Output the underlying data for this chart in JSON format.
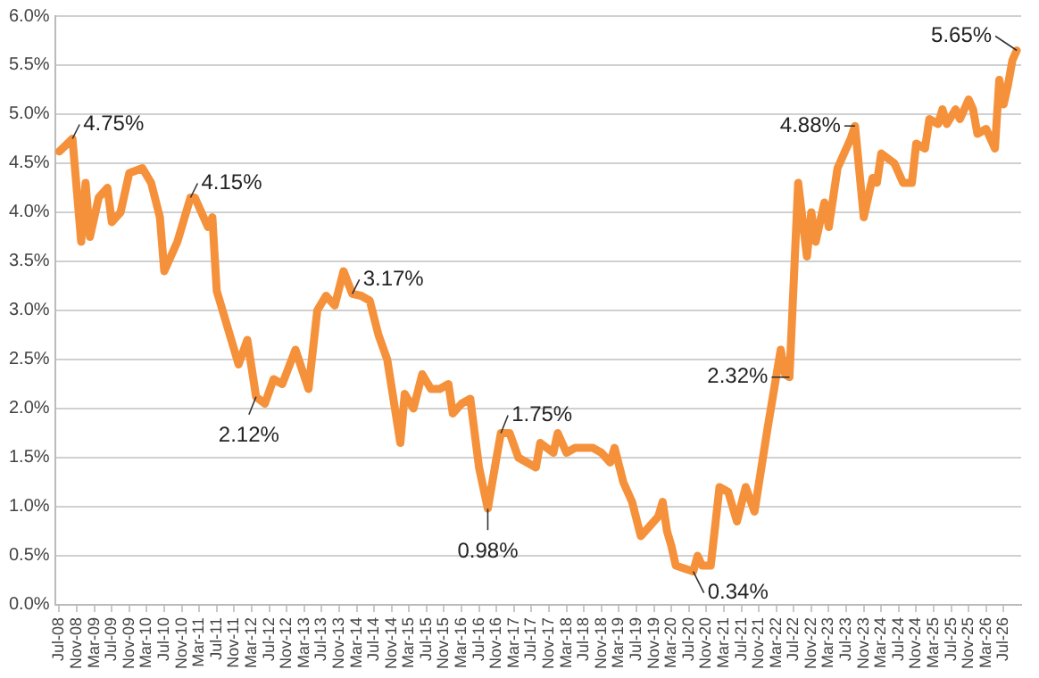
{
  "chart_data": {
    "type": "line",
    "grid": "y",
    "legend": false,
    "marker": "none",
    "line_style": "solid",
    "xlim": [
      "2008-06",
      "2026-11"
    ],
    "xticks": [
      {
        "value": "2008-07",
        "label": "Jul-08"
      },
      {
        "value": "2008-11",
        "label": "Nov-08"
      },
      {
        "value": "2009-03",
        "label": "Mar-09"
      },
      {
        "value": "2009-07",
        "label": "Jul-09"
      },
      {
        "value": "2009-11",
        "label": "Nov-09"
      },
      {
        "value": "2010-03",
        "label": "Mar-10"
      },
      {
        "value": "2010-07",
        "label": "Jul-10"
      },
      {
        "value": "2010-11",
        "label": "Nov-10"
      },
      {
        "value": "2011-03",
        "label": "Mar-11"
      },
      {
        "value": "2011-07",
        "label": "Jul-11"
      },
      {
        "value": "2011-11",
        "label": "Nov-11"
      },
      {
        "value": "2012-03",
        "label": "Mar-12"
      },
      {
        "value": "2012-07",
        "label": "Jul-12"
      },
      {
        "value": "2012-11",
        "label": "Nov-12"
      },
      {
        "value": "2013-03",
        "label": "Mar-13"
      },
      {
        "value": "2013-07",
        "label": "Jul-13"
      },
      {
        "value": "2013-11",
        "label": "Nov-13"
      },
      {
        "value": "2014-03",
        "label": "Mar-14"
      },
      {
        "value": "2014-07",
        "label": "Jul-14"
      },
      {
        "value": "2014-11",
        "label": "Nov-14"
      },
      {
        "value": "2015-03",
        "label": "Mar-15"
      },
      {
        "value": "2015-07",
        "label": "Jul-15"
      },
      {
        "value": "2015-11",
        "label": "Nov-15"
      },
      {
        "value": "2016-03",
        "label": "Mar-16"
      },
      {
        "value": "2016-07",
        "label": "Jul-16"
      },
      {
        "value": "2016-11",
        "label": "Nov-16"
      },
      {
        "value": "2017-03",
        "label": "Mar-17"
      },
      {
        "value": "2017-07",
        "label": "Jul-17"
      },
      {
        "value": "2017-11",
        "label": "Nov-17"
      },
      {
        "value": "2018-03",
        "label": "Mar-18"
      },
      {
        "value": "2018-07",
        "label": "Jul-18"
      },
      {
        "value": "2018-11",
        "label": "Nov-18"
      },
      {
        "value": "2019-03",
        "label": "Mar-19"
      },
      {
        "value": "2019-07",
        "label": "Jul-19"
      },
      {
        "value": "2019-11",
        "label": "Nov-19"
      },
      {
        "value": "2020-03",
        "label": "Mar-20"
      },
      {
        "value": "2020-07",
        "label": "Jul-20"
      },
      {
        "value": "2020-11",
        "label": "Nov-20"
      },
      {
        "value": "2021-03",
        "label": "Mar-21"
      },
      {
        "value": "2021-07",
        "label": "Jul-21"
      },
      {
        "value": "2021-11",
        "label": "Nov-21"
      },
      {
        "value": "2022-03",
        "label": "Mar-22"
      },
      {
        "value": "2022-07",
        "label": "Jul-22"
      },
      {
        "value": "2022-11",
        "label": "Nov-22"
      },
      {
        "value": "2023-03",
        "label": "Mar-23"
      },
      {
        "value": "2023-07",
        "label": "Jul-23"
      },
      {
        "value": "2023-11",
        "label": "Nov-23"
      },
      {
        "value": "2024-03",
        "label": "Mar-24"
      },
      {
        "value": "2024-07",
        "label": "Jul-24"
      },
      {
        "value": "2024-11",
        "label": "Nov-24"
      },
      {
        "value": "2025-03",
        "label": "Mar-25"
      },
      {
        "value": "2025-07",
        "label": "Jul-25"
      },
      {
        "value": "2025-11",
        "label": "Nov-25"
      },
      {
        "value": "2026-03",
        "label": "Mar-26"
      },
      {
        "value": "2026-07",
        "label": "Jul-26"
      }
    ],
    "ylim": [
      0,
      6
    ],
    "yticks": [
      {
        "value": 0,
        "label": "0.0%"
      },
      {
        "value": 0.5,
        "label": "0.5%"
      },
      {
        "value": 1,
        "label": "1.0%"
      },
      {
        "value": 1.5,
        "label": "1.5%"
      },
      {
        "value": 2,
        "label": "2.0%"
      },
      {
        "value": 2.5,
        "label": "2.5%"
      },
      {
        "value": 3,
        "label": "3.0%"
      },
      {
        "value": 3.5,
        "label": "3.5%"
      },
      {
        "value": 4,
        "label": "4.0%"
      },
      {
        "value": 4.5,
        "label": "4.5%"
      },
      {
        "value": 5,
        "label": "5.0%"
      },
      {
        "value": 5.5,
        "label": "5.5%"
      },
      {
        "value": 6,
        "label": "6.0%"
      }
    ],
    "series": [
      {
        "color": "#f5913a",
        "x": [
          "2008-07",
          "2008-10",
          "2008-12",
          "2009-01",
          "2009-02",
          "2009-04",
          "2009-06",
          "2009-07",
          "2009-09",
          "2009-11",
          "2010-02",
          "2010-04",
          "2010-06",
          "2010-07",
          "2010-10",
          "2011-01",
          "2011-02",
          "2011-05",
          "2011-06",
          "2011-07",
          "2011-09",
          "2011-12",
          "2012-02",
          "2012-04",
          "2012-06",
          "2012-08",
          "2012-10",
          "2013-01",
          "2013-04",
          "2013-06",
          "2013-08",
          "2013-10",
          "2013-12",
          "2014-02",
          "2014-04",
          "2014-06",
          "2014-08",
          "2014-10",
          "2015-01",
          "2015-02",
          "2015-04",
          "2015-06",
          "2015-08",
          "2015-10",
          "2015-12",
          "2016-01",
          "2016-03",
          "2016-05",
          "2016-07",
          "2016-09",
          "2016-11",
          "2016-12",
          "2017-02",
          "2017-04",
          "2017-06",
          "2017-08",
          "2017-09",
          "2017-12",
          "2018-01",
          "2018-03",
          "2018-05",
          "2018-09",
          "2018-11",
          "2019-01",
          "2019-02",
          "2019-04",
          "2019-06",
          "2019-08",
          "2019-12",
          "2020-01",
          "2020-02",
          "2020-03",
          "2020-04",
          "2020-08",
          "2020-09",
          "2020-10",
          "2020-12",
          "2021-02",
          "2021-04",
          "2021-06",
          "2021-08",
          "2021-10",
          "2022-01",
          "2022-04",
          "2022-05",
          "2022-06",
          "2022-08",
          "2022-10",
          "2022-11",
          "2022-12",
          "2023-02",
          "2023-03",
          "2023-05",
          "2023-06",
          "2023-08",
          "2023-09",
          "2023-11",
          "2024-01",
          "2024-02",
          "2024-03",
          "2024-06",
          "2024-08",
          "2024-10",
          "2024-11",
          "2025-01",
          "2025-02",
          "2025-04",
          "2025-05",
          "2025-06",
          "2025-08",
          "2025-09",
          "2025-11",
          "2025-12",
          "2026-01",
          "2026-03",
          "2026-05",
          "2026-06",
          "2026-07",
          "2026-08",
          "2026-09",
          "2026-10"
        ],
        "values": [
          4.62,
          4.75,
          3.7,
          4.3,
          3.75,
          4.15,
          4.25,
          3.9,
          4.0,
          4.4,
          4.45,
          4.3,
          3.95,
          3.4,
          3.7,
          4.15,
          4.15,
          3.85,
          3.95,
          3.2,
          2.9,
          2.45,
          2.7,
          2.12,
          2.05,
          2.3,
          2.25,
          2.6,
          2.2,
          3.0,
          3.15,
          3.05,
          3.4,
          3.17,
          3.15,
          3.1,
          2.75,
          2.5,
          1.65,
          2.15,
          2.0,
          2.35,
          2.2,
          2.2,
          2.25,
          1.95,
          2.05,
          2.1,
          1.4,
          0.98,
          1.5,
          1.75,
          1.75,
          1.5,
          1.45,
          1.4,
          1.65,
          1.55,
          1.75,
          1.55,
          1.6,
          1.6,
          1.55,
          1.45,
          1.6,
          1.25,
          1.05,
          0.7,
          0.9,
          1.05,
          0.75,
          0.6,
          0.4,
          0.34,
          0.5,
          0.4,
          0.4,
          1.2,
          1.15,
          0.85,
          1.2,
          0.95,
          1.8,
          2.6,
          2.35,
          2.32,
          4.3,
          3.55,
          4.0,
          3.7,
          4.1,
          3.85,
          4.45,
          4.55,
          4.75,
          4.88,
          3.95,
          4.35,
          4.3,
          4.6,
          4.5,
          4.3,
          4.3,
          4.7,
          4.65,
          4.95,
          4.9,
          5.05,
          4.9,
          5.05,
          4.95,
          5.15,
          5.05,
          4.8,
          4.85,
          4.65,
          5.35,
          5.1,
          5.3,
          5.55,
          5.65
        ]
      }
    ],
    "annotations": [
      {
        "text": "4.75%",
        "x": "2008-10",
        "y": 4.75
      },
      {
        "text": "4.15%",
        "x": "2011-01",
        "y": 4.15
      },
      {
        "text": "3.17%",
        "x": "2014-02",
        "y": 3.17
      },
      {
        "text": "2.12%",
        "x": "2012-04",
        "y": 2.12
      },
      {
        "text": "0.98%",
        "x": "2016-09",
        "y": 0.98
      },
      {
        "text": "1.75%",
        "x": "2016-12",
        "y": 1.75
      },
      {
        "text": "0.34%",
        "x": "2020-08",
        "y": 0.34
      },
      {
        "text": "2.32%",
        "x": "2022-06",
        "y": 2.32
      },
      {
        "text": "4.88%",
        "x": "2023-09",
        "y": 4.88
      },
      {
        "text": "5.65%",
        "x": "2026-10",
        "y": 5.65
      }
    ]
  }
}
